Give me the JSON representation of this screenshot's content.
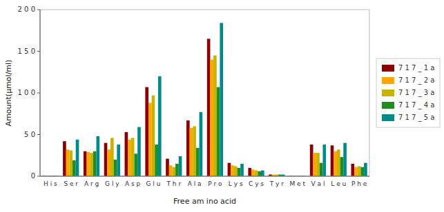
{
  "chart_data": {
    "type": "bar",
    "xlabel": "Free am ino acid",
    "ylabel": "Amount(μmol/ml)",
    "categories": [
      "H i s",
      "S e r",
      "A r g",
      "G l y",
      "A s p",
      "G l u",
      "T h r",
      "A l a",
      "P r o",
      "L y s",
      "C y s",
      "T y r",
      "M e t",
      "V a l",
      "L e u",
      "P h e"
    ],
    "series": [
      {
        "name": "7 1 7 _ 1 a",
        "color": "#8B0000",
        "values": [
          0.5,
          42,
          30,
          40,
          53,
          107,
          21,
          67,
          165,
          16,
          10,
          2,
          0.5,
          38,
          37,
          15
        ]
      },
      {
        "name": "7 1 7 _ 2 a",
        "color": "#FFA500",
        "values": [
          0.5,
          32,
          29,
          32,
          44,
          88,
          13,
          58,
          140,
          13,
          8,
          2,
          0.5,
          28,
          30,
          11
        ]
      },
      {
        "name": "7 1 7 _ 3 a",
        "color": "#C8B400",
        "values": [
          0.5,
          31,
          28,
          46,
          46,
          97,
          11,
          60,
          145,
          12,
          7,
          2,
          0.5,
          28,
          32,
          12
        ]
      },
      {
        "name": "7 1 7 _ 4 a",
        "color": "#228B22",
        "values": [
          0.5,
          19,
          30,
          20,
          27,
          38,
          15,
          34,
          107,
          10,
          6,
          2,
          0.5,
          16,
          23,
          11
        ]
      },
      {
        "name": "7 1 7 _ 5 a",
        "color": "#008B8B",
        "values": [
          0.5,
          44,
          48,
          38,
          59,
          120,
          24,
          77,
          184,
          15,
          7,
          2,
          0.5,
          38,
          40,
          16
        ]
      }
    ],
    "ylim": [
      0,
      200
    ],
    "yticks": [
      0,
      {
        "value": 50,
        "label": "5 0"
      },
      {
        "value": 100,
        "label": "1 0 0"
      },
      {
        "value": 150,
        "label": "1 5 0"
      },
      {
        "value": 200,
        "label": "2 0 0"
      }
    ],
    "grid": false,
    "legend": "right"
  }
}
